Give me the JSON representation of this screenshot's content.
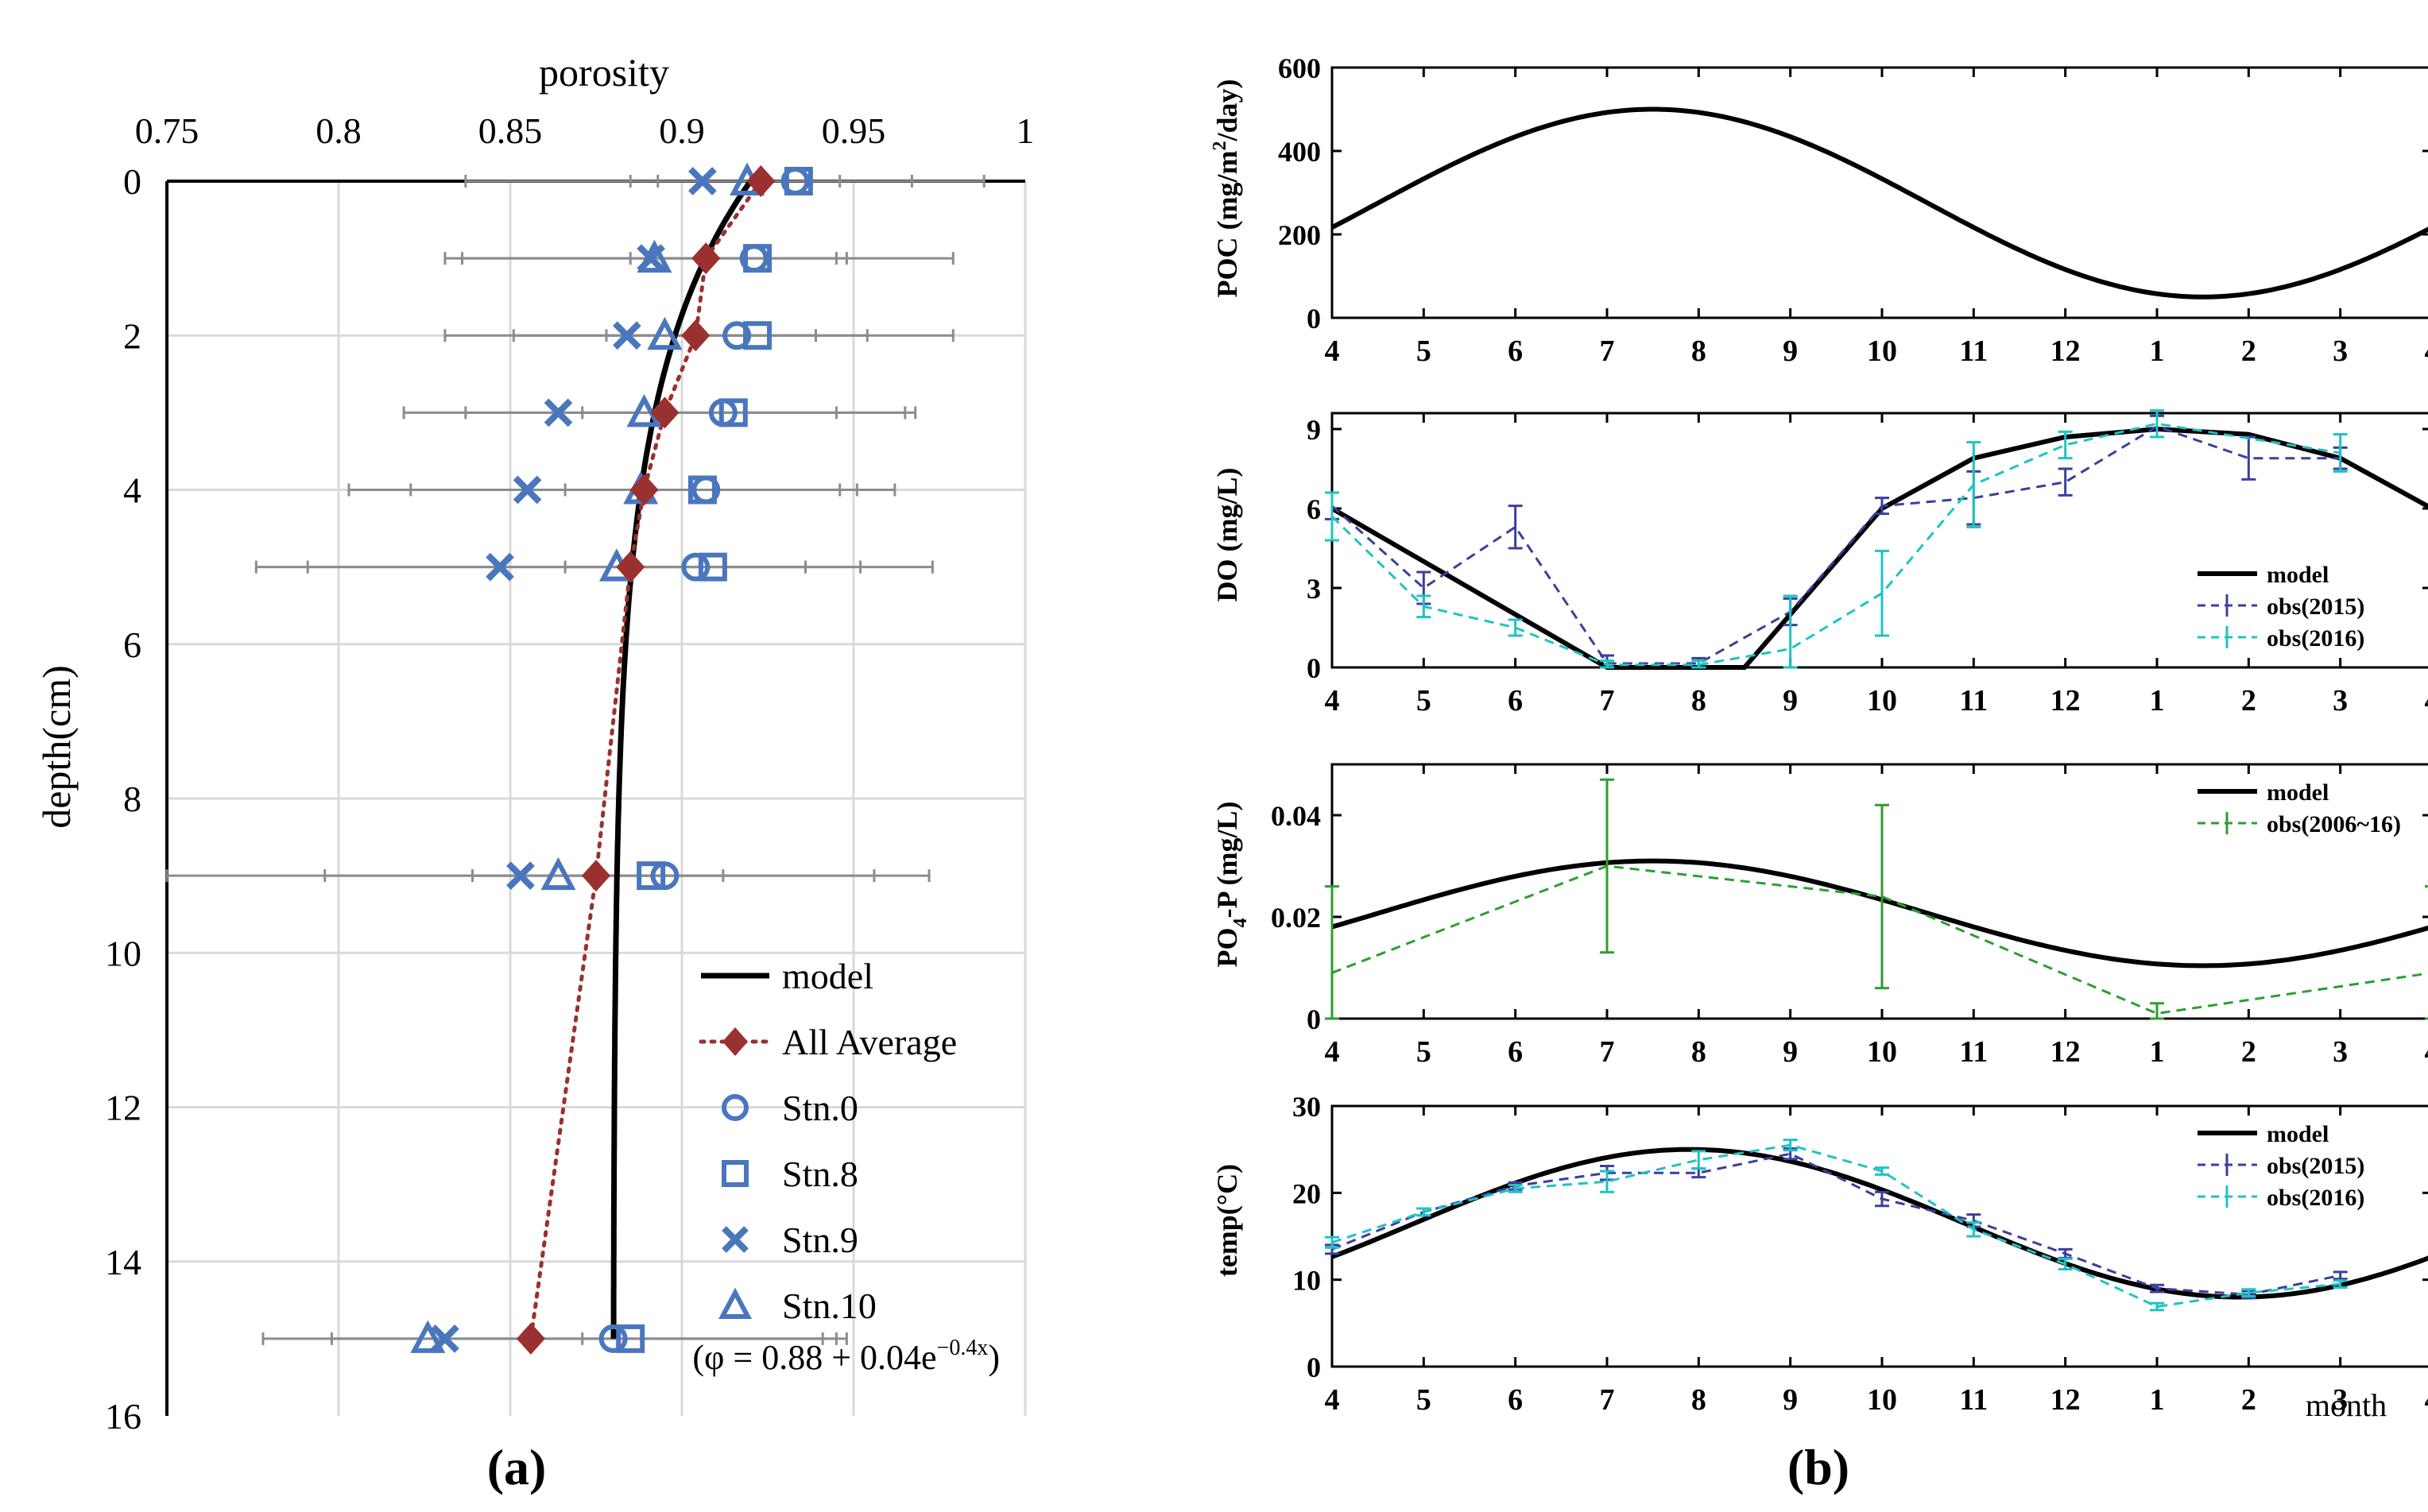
{
  "chart_data": [
    {
      "id": "a",
      "panel_label": "(a)",
      "type": "scatter",
      "title": "porosity",
      "xlabel": "porosity",
      "ylabel": "depth(cm)",
      "xlim": [
        0.75,
        1.0
      ],
      "ylim": [
        0,
        16
      ],
      "xticks": [
        "0.75",
        "0.8",
        "0.85",
        "0.9",
        "0.95",
        "1"
      ],
      "yticks": [
        "0",
        "2",
        "4",
        "6",
        "8",
        "10",
        "12",
        "14",
        "16"
      ],
      "equation": "(φ = 0.88 + 0.04e",
      "equation_sup": "−0.4x",
      "equation_close": ")",
      "model": {
        "name": "model",
        "phi0": 0.88,
        "a": 0.04,
        "k": 0.4
      },
      "average": {
        "name": "All Average",
        "depth": [
          0,
          1,
          2,
          3,
          4,
          5,
          9,
          15
        ],
        "porosity": [
          0.923,
          0.907,
          0.904,
          0.895,
          0.889,
          0.885,
          0.875,
          0.856
        ]
      },
      "error_bars": [
        {
          "depth": 0,
          "ranges": [
            [
              0.837,
              0.988
            ],
            [
              0.885,
              0.967
            ],
            [
              0.893,
              0.946
            ]
          ]
        },
        {
          "depth": 1,
          "ranges": [
            [
              0.831,
              0.979
            ],
            [
              0.836,
              0.948
            ],
            [
              0.885,
              0.945
            ]
          ]
        },
        {
          "depth": 2,
          "ranges": [
            [
              0.831,
              0.979
            ],
            [
              0.851,
              0.954
            ],
            [
              0.878,
              0.939
            ]
          ]
        },
        {
          "depth": 3,
          "ranges": [
            [
              0.819,
              0.968
            ],
            [
              0.837,
              0.965
            ],
            [
              0.871,
              0.945
            ]
          ]
        },
        {
          "depth": 4,
          "ranges": [
            [
              0.803,
              0.962
            ],
            [
              0.821,
              0.946
            ],
            [
              0.866,
              0.951
            ]
          ]
        },
        {
          "depth": 5,
          "ranges": [
            [
              0.776,
              0.973
            ],
            [
              0.791,
              0.952
            ],
            [
              0.866,
              0.936
            ]
          ]
        },
        {
          "depth": 9,
          "ranges": [
            [
              0.75,
              0.972
            ],
            [
              0.796,
              0.956
            ],
            [
              0.839,
              0.912
            ]
          ]
        },
        {
          "depth": 15,
          "ranges": [
            [
              0.778,
              0.948
            ],
            [
              0.798,
              0.941
            ],
            [
              0.871,
              0.945
            ]
          ]
        }
      ],
      "stations": [
        {
          "name": "Stn.0",
          "marker": "circle",
          "depth": [
            0,
            1,
            2,
            3,
            4,
            5,
            9,
            15
          ],
          "porosity": [
            0.933,
            0.921,
            0.916,
            0.912,
            0.907,
            0.904,
            0.895,
            0.88
          ]
        },
        {
          "name": "Stn.8",
          "marker": "square",
          "depth": [
            0,
            1,
            2,
            3,
            4,
            5,
            9,
            15
          ],
          "porosity": [
            0.934,
            0.922,
            0.922,
            0.915,
            0.906,
            0.909,
            0.891,
            0.885
          ]
        },
        {
          "name": "Stn.9",
          "marker": "x",
          "depth": [
            0,
            1,
            2,
            3,
            4,
            5,
            9,
            15
          ],
          "porosity": [
            0.906,
            0.891,
            0.884,
            0.864,
            0.855,
            0.847,
            0.853,
            0.831
          ]
        },
        {
          "name": "Stn.10",
          "marker": "triangle",
          "depth": [
            0,
            1,
            2,
            3,
            4,
            5,
            9,
            15
          ],
          "porosity": [
            0.919,
            0.892,
            0.895,
            0.889,
            0.888,
            0.881,
            0.864,
            0.826
          ]
        }
      ],
      "legend": {
        "position": "bottom-right",
        "entries": [
          "model",
          "All Average",
          "Stn.0",
          "Stn.8",
          "Stn.9",
          "Stn.10"
        ]
      },
      "colors": {
        "marker": "#4a76bd",
        "average": "#9b3030",
        "model": "#000000",
        "grid": "#d9d9d9",
        "errbar": "#8c8c8c"
      }
    },
    {
      "id": "b",
      "panel_label": "(b)",
      "type": "line",
      "xlabel": "month",
      "xtick_labels": [
        "4",
        "5",
        "6",
        "7",
        "8",
        "9",
        "10",
        "11",
        "12",
        "1",
        "2",
        "3",
        "4"
      ],
      "subplots": [
        {
          "id": "poc",
          "ylabel": "POC (mg/m2/day)",
          "ylabel_parts": [
            "POC (mg/m",
            "2",
            "/day)"
          ],
          "ylim": [
            0,
            600
          ],
          "yticks": [
            "0",
            "200",
            "400",
            "600"
          ],
          "model": {
            "name": "model",
            "kind": "sine",
            "mean": 275,
            "amp": 225,
            "peak": 3.5
          }
        },
        {
          "id": "do",
          "ylabel": "DO (mg/L)",
          "ylim": [
            0,
            9.6
          ],
          "yticks": [
            "0",
            "3",
            "6",
            "9"
          ],
          "model": {
            "name": "model",
            "x": [
              0,
              3,
              4.5,
              6,
              7,
              8,
              9,
              10,
              11,
              12
            ],
            "y": [
              6,
              0,
              0,
              6,
              7.9,
              8.7,
              9,
              8.8,
              7.9,
              6
            ]
          },
          "obs": [
            {
              "name": "obs(2015)",
              "color": "#3b3f9e",
              "x": [
                0,
                1,
                2,
                3,
                4,
                5,
                6,
                7,
                8,
                9,
                10,
                11
              ],
              "y": [
                6.1,
                3,
                5.3,
                0.15,
                0.15,
                2.1,
                6.1,
                6.4,
                7,
                9.1,
                7.9,
                7.9
              ],
              "err": [
                0.5,
                0.6,
                0.8,
                0.3,
                0.2,
                0.5,
                0.3,
                1.0,
                0.5,
                0.4,
                0.8,
                0.4
              ]
            },
            {
              "name": "obs(2016)",
              "color": "#1fc3c3",
              "x": [
                0,
                1,
                2,
                3,
                4,
                5,
                6,
                7,
                8,
                9,
                11
              ],
              "y": [
                5.7,
                2.3,
                1.5,
                0.1,
                0.1,
                0.7,
                2.8,
                6.9,
                8.4,
                9.2,
                8.1
              ],
              "err": [
                0.9,
                0.4,
                0.3,
                0.15,
                0.15,
                2.0,
                1.6,
                1.6,
                0.5,
                0.5,
                0.7
              ]
            }
          ],
          "legend": {
            "position": "bottom-right",
            "entries": [
              "model",
              "obs(2015)",
              "obs(2016)"
            ]
          }
        },
        {
          "id": "po4",
          "ylabel": "PO4-P (mg/L)",
          "ylabel_parts": [
            "PO",
            "4",
            "-P (mg/L)"
          ],
          "ylim": [
            0,
            0.05
          ],
          "yticks": [
            "0",
            "0.02",
            "0.04"
          ],
          "model": {
            "name": "model",
            "kind": "sine",
            "mean": 0.0207,
            "amp": 0.0103,
            "peak": 3.5
          },
          "obs": [
            {
              "name": "obs(2006~16)",
              "color": "#2e9e2e",
              "x": [
                0,
                3,
                6,
                9,
                12
              ],
              "y": [
                0.009,
                0.03,
                0.024,
                0.001,
                0.009
              ],
              "err": [
                0.017,
                0.017,
                0.018,
                0.002,
                0.017
              ]
            }
          ],
          "legend": {
            "position": "top-right",
            "entries": [
              "model",
              "obs(2006~16)"
            ]
          }
        },
        {
          "id": "temp",
          "ylabel": "temp(°C)",
          "ylim": [
            0,
            30
          ],
          "yticks": [
            "0",
            "10",
            "20",
            "30"
          ],
          "model": {
            "name": "model",
            "kind": "sine",
            "mean": 16.5,
            "amp": 8.5,
            "peak": 3.9
          },
          "obs": [
            {
              "name": "obs(2015)",
              "color": "#3b3f9e",
              "x": [
                0,
                1,
                2,
                3,
                4,
                5,
                6,
                7,
                8,
                9,
                10,
                11
              ],
              "y": [
                13.5,
                17.8,
                20.8,
                22.3,
                22.3,
                24.5,
                19.3,
                16.8,
                13,
                9,
                8.3,
                10.5
              ],
              "err": [
                0.5,
                0.4,
                0.4,
                0.8,
                0.5,
                0.6,
                0.8,
                0.7,
                0.5,
                0.4,
                0.4,
                0.4
              ]
            },
            {
              "name": "obs(2016)",
              "color": "#1fc3c3",
              "x": [
                0,
                1,
                2,
                3,
                4,
                5,
                6,
                7,
                8,
                9,
                10,
                11
              ],
              "y": [
                14.3,
                17.8,
                20.5,
                21.3,
                23.8,
                25.5,
                22.5,
                15.8,
                11.8,
                6.9,
                8.5,
                9.5
              ],
              "err": [
                0.6,
                0.4,
                0.4,
                1.2,
                1.0,
                0.6,
                0.4,
                0.8,
                0.6,
                0.4,
                0.4,
                0.4
              ]
            }
          ],
          "legend": {
            "position": "top-right",
            "entries": [
              "model",
              "obs(2015)",
              "obs(2016)"
            ]
          }
        }
      ]
    }
  ]
}
